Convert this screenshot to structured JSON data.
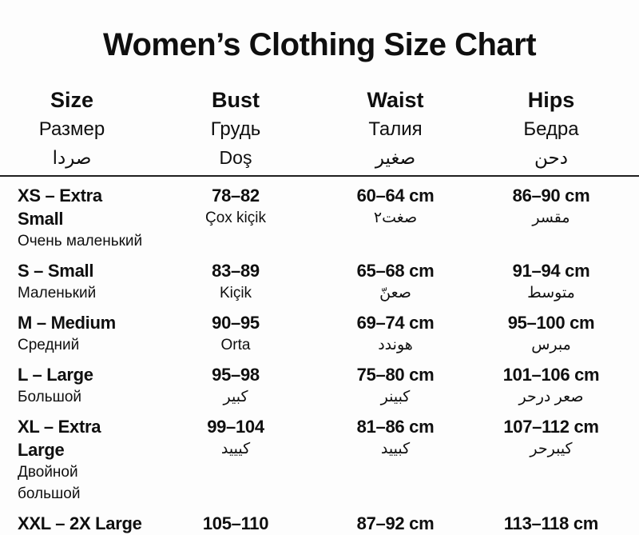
{
  "colors": {
    "background": "#fdfdfd",
    "text": "#0f0f0f",
    "divider": "#1f1f1f"
  },
  "chart_data": {
    "type": "table",
    "title": "Women’s Clothing Size Chart",
    "header": [
      {
        "en": "Size",
        "ru": "Размер",
        "native": "صردا"
      },
      {
        "en": "Bust",
        "ru": "Грудь",
        "native": "Doş"
      },
      {
        "en": "Waist",
        "ru": "Талия",
        "native": "صغير"
      },
      {
        "en": "Hips",
        "ru": "Бедра",
        "native": "دحن"
      }
    ],
    "rows": [
      {
        "size": "XS – Extra Small",
        "size_sub": "Очень маленький",
        "bust": "78–82",
        "bust_sub": "Çox kiçik",
        "waist": "60–64 cm",
        "waist_sub": "صغت٢",
        "hips": "86–90 cm",
        "hips_sub": "مقسر"
      },
      {
        "size": "S – Small",
        "size_sub": "Маленький",
        "bust": "83–89",
        "bust_sub": "Kiçik",
        "waist": "65–68 cm",
        "waist_sub": "صعنّ",
        "hips": "91–94 cm",
        "hips_sub": "متوسط"
      },
      {
        "size": "M – Medium",
        "size_sub": "Средний",
        "bust": "90–95",
        "bust_sub": "Orta",
        "waist": "69–74 cm",
        "waist_sub": "هوندد",
        "hips": "95–100 cm",
        "hips_sub": "مبرس"
      },
      {
        "size": "L – Large",
        "size_sub": "Большой",
        "bust": "95–98",
        "bust_sub": "كبير",
        "waist": "75–80 cm",
        "waist_sub": "كبينر",
        "hips": "101–106 cm",
        "hips_sub": "صعر درحر"
      },
      {
        "size": "XL – Extra Large",
        "size_sub": "Двойной большой",
        "bust": "99–104",
        "bust_sub": "كيييد",
        "waist": "81–86 cm",
        "waist_sub": "كبييد",
        "hips": "107–112 cm",
        "hips_sub": "كيبرحر"
      },
      {
        "size": "XXL – 2X Large",
        "size_sub": "",
        "bust": "105–110",
        "bust_sub": "",
        "waist": "87–92 cm",
        "waist_sub": "",
        "hips": "113–118 cm",
        "hips_sub": ""
      }
    ]
  }
}
